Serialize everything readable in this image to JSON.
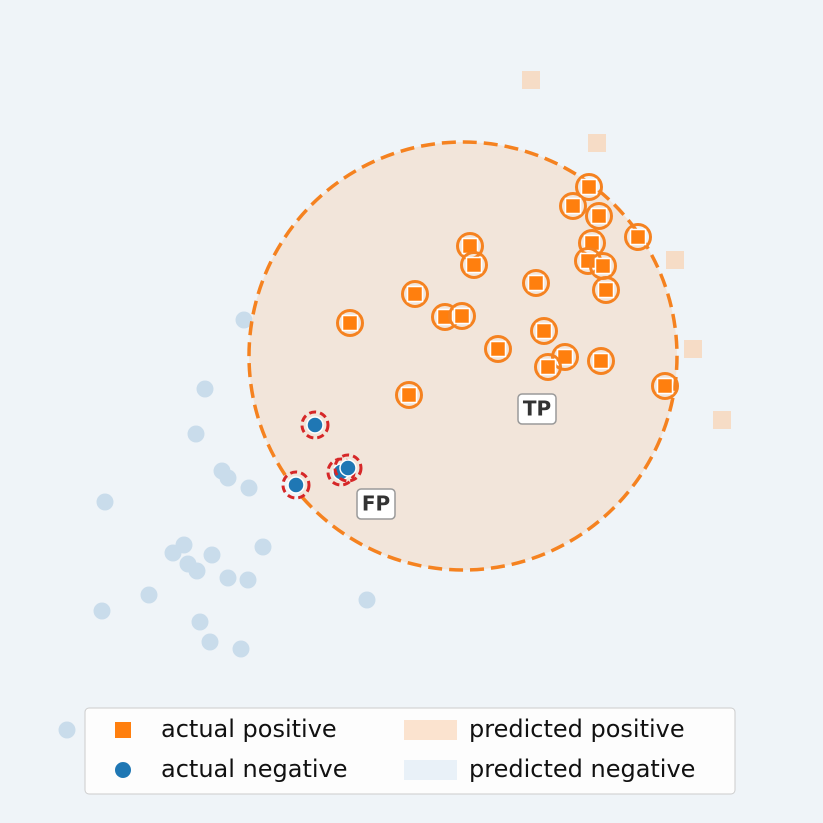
{
  "chart_data": {
    "type": "scatter",
    "xlim": [
      0,
      82.3
    ],
    "ylim": [
      0,
      82.3
    ],
    "boundary": {
      "center_x": 46.3,
      "center_y": 46.7,
      "radius": 21.4,
      "color": "#f58220",
      "fill": "#f2e5da"
    },
    "series": [
      {
        "name": "actual positive",
        "marker": "square",
        "color": "#ff7f0e",
        "faded_color": "#f6dcc6",
        "x": [
          58.9,
          57.3,
          59.9,
          47.0,
          47.4,
          59.2,
          58.8,
          60.3,
          63.8,
          60.6,
          41.5,
          53.6,
          35.0,
          44.5,
          46.2,
          54.4,
          49.8,
          56.5,
          54.8,
          60.1,
          40.9,
          66.5,
          53.1,
          59.7,
          67.5,
          69.3,
          72.2
        ],
        "y": [
          63.6,
          61.7,
          60.7,
          57.7,
          55.8,
          58.0,
          56.2,
          55.7,
          58.6,
          53.3,
          52.9,
          54.0,
          50.0,
          50.6,
          50.7,
          49.2,
          47.4,
          46.6,
          45.6,
          46.2,
          42.8,
          43.7,
          74.3,
          68.0,
          56.3,
          47.4,
          40.3
        ]
      },
      {
        "name": "actual negative",
        "marker": "circle",
        "color": "#1f77b4",
        "faded_color": "#c9dceb",
        "x": [
          24.4,
          20.5,
          19.6,
          22.2,
          22.8,
          24.9,
          10.5,
          26.3,
          18.4,
          17.3,
          18.8,
          19.7,
          21.2,
          22.8,
          24.8,
          14.9,
          10.2,
          20.0,
          21.0,
          24.1,
          36.7,
          6.7,
          31.5,
          34.1,
          34.8,
          29.6
        ],
        "y": [
          50.3,
          43.4,
          38.9,
          35.2,
          34.5,
          33.5,
          32.1,
          27.6,
          27.8,
          27.0,
          25.9,
          25.2,
          26.8,
          24.5,
          24.3,
          22.8,
          21.2,
          20.1,
          18.1,
          17.4,
          22.3,
          9.3,
          39.8,
          35.1,
          35.5,
          33.8
        ]
      }
    ],
    "regions": [
      {
        "name": "predicted positive",
        "color": "#fbe3cf"
      },
      {
        "name": "predicted negative",
        "color": "#e9f1f8"
      }
    ],
    "annotations": [
      {
        "text": "TP",
        "x": 53.7,
        "y": 41.4
      },
      {
        "text": "FP",
        "x": 37.6,
        "y": 31.9
      }
    ]
  }
}
